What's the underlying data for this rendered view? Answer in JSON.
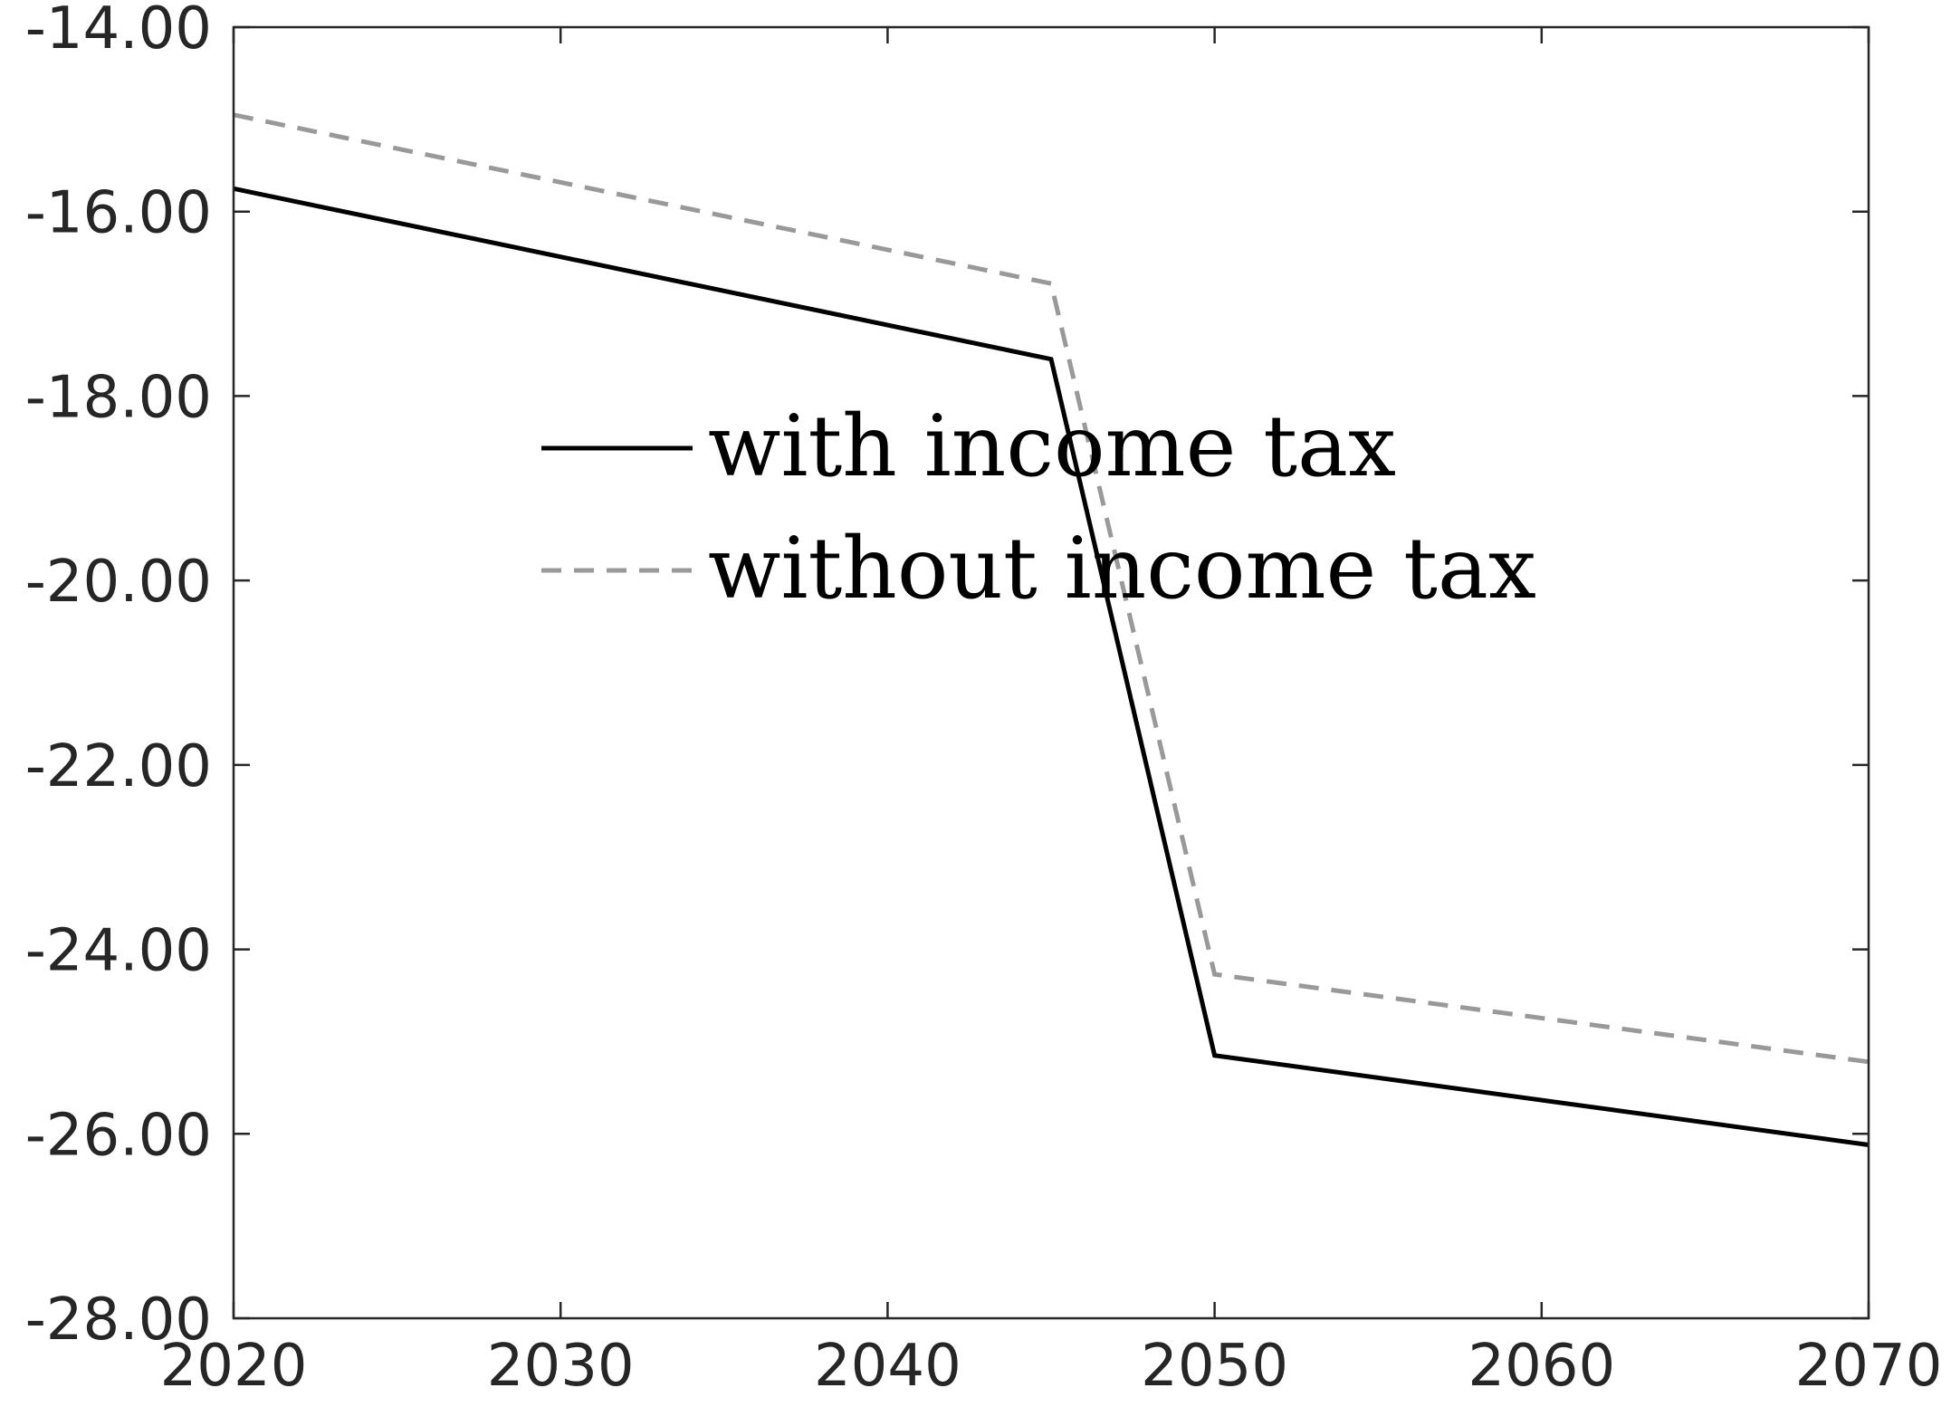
{
  "chart_data": {
    "type": "line",
    "title": "",
    "xlabel": "",
    "ylabel": "",
    "x": [
      2020,
      2045,
      2050,
      2070
    ],
    "xlim": [
      2020,
      2070
    ],
    "ylim": [
      -28,
      -14
    ],
    "xticks": [
      2020,
      2030,
      2040,
      2050,
      2060,
      2070
    ],
    "yticks": [
      -28,
      -26,
      -24,
      -22,
      -20,
      -18,
      -16,
      -14
    ],
    "xtick_labels": [
      "2020",
      "2030",
      "2040",
      "2050",
      "2060",
      "2070"
    ],
    "ytick_labels": [
      "-28.00",
      "-26.00",
      "-24.00",
      "-22.00",
      "-20.00",
      "-18.00",
      "-16.00",
      "-14.00"
    ],
    "grid": false,
    "legend_position": "upper-center",
    "series": [
      {
        "name": "with income tax",
        "x": [
          2020,
          2045,
          2050,
          2070
        ],
        "values": [
          -15.75,
          -17.6,
          -25.15,
          -26.12
        ],
        "color": "#000000",
        "style": "solid"
      },
      {
        "name": "without income tax",
        "x": [
          2020,
          2045,
          2050,
          2070
        ],
        "values": [
          -14.95,
          -16.78,
          -24.27,
          -25.22
        ],
        "color": "#999999",
        "style": "dashed"
      }
    ]
  }
}
